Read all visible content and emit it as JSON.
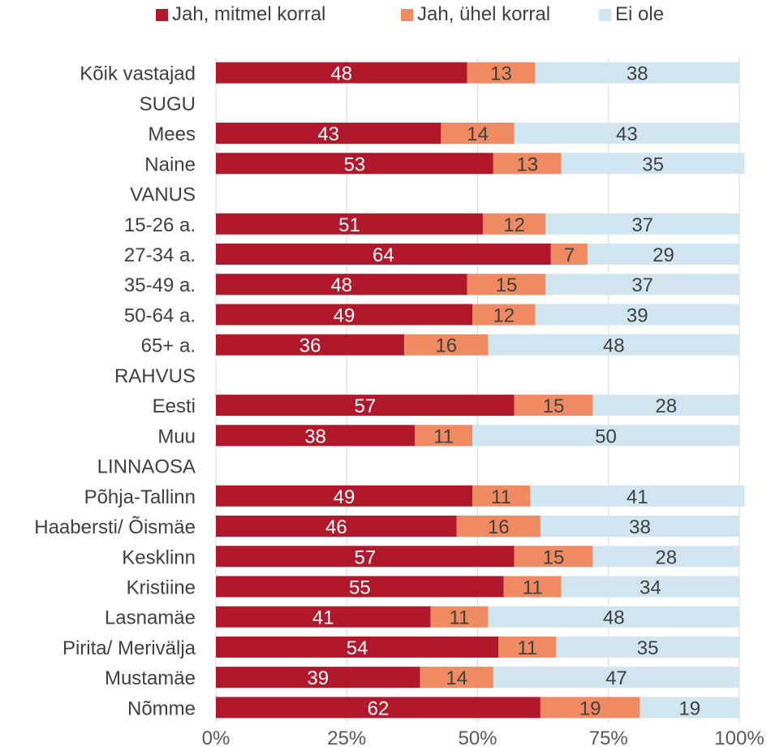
{
  "chart_data": {
    "type": "bar",
    "orientation": "horizontal",
    "stacked": true,
    "percent": true,
    "categories": [
      "Kõik vastajad",
      "SUGU",
      "Mees",
      "Naine",
      "VANUS",
      "15-26 a.",
      "27-34 a.",
      "35-49 a.",
      "50-64 a.",
      "65+ a.",
      "RAHVUS",
      "Eesti",
      "Muu",
      "LINNAOSA",
      "Põhja-Tallinn",
      "Haabersti/ Õismäe",
      "Kesklinn",
      "Kristiine",
      "Lasnamäe",
      "Pirita/ Merivälja",
      "Mustamäe",
      "Nõmme"
    ],
    "series": [
      {
        "name": "Jah, mitmel korral",
        "color": "#b2182b",
        "values": [
          48,
          null,
          43,
          53,
          null,
          51,
          64,
          48,
          49,
          36,
          null,
          57,
          38,
          null,
          49,
          46,
          57,
          55,
          41,
          54,
          39,
          62
        ]
      },
      {
        "name": "Jah, ühel korral",
        "color": "#ef8a62",
        "values": [
          13,
          null,
          14,
          13,
          null,
          12,
          7,
          15,
          12,
          16,
          null,
          15,
          11,
          null,
          11,
          16,
          15,
          11,
          11,
          11,
          14,
          19
        ]
      },
      {
        "name": "Ei ole",
        "color": "#d1e5f0",
        "values": [
          38,
          null,
          43,
          35,
          null,
          37,
          29,
          37,
          39,
          48,
          null,
          28,
          50,
          null,
          41,
          38,
          28,
          34,
          48,
          35,
          47,
          19
        ]
      }
    ],
    "xticks": [
      "0%",
      "25%",
      "50%",
      "75%",
      "100%"
    ],
    "xlim": [
      0,
      100
    ],
    "grid": true,
    "legend_position": "top",
    "label_colors": [
      "#ffffff",
      "#404040",
      "#404040"
    ]
  }
}
